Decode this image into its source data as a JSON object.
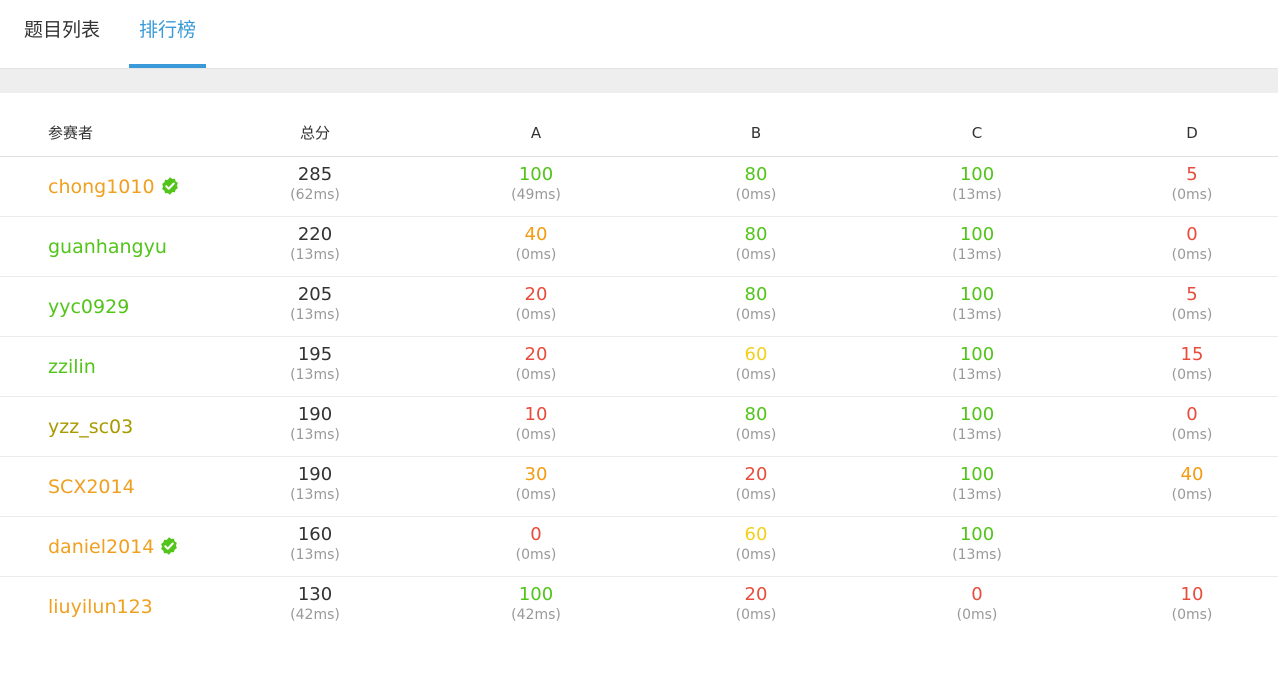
{
  "tabs": [
    {
      "label": "题目列表",
      "active": false
    },
    {
      "label": "排行榜",
      "active": true
    }
  ],
  "table": {
    "headers": [
      "参赛者",
      "总分",
      "A",
      "B",
      "C",
      "D"
    ],
    "rows": [
      {
        "name": "chong1010",
        "name_color": "#f0a020",
        "verified": true,
        "total": {
          "score": "285",
          "time": "(62ms)"
        },
        "problems": [
          {
            "score": "100",
            "time": "(49ms)",
            "color": "#52c41a"
          },
          {
            "score": "80",
            "time": "(0ms)",
            "color": "#52c41a"
          },
          {
            "score": "100",
            "time": "(13ms)",
            "color": "#52c41a"
          },
          {
            "score": "5",
            "time": "(0ms)",
            "color": "#e74c3c"
          }
        ]
      },
      {
        "name": "guanhangyu",
        "name_color": "#52c41a",
        "verified": false,
        "total": {
          "score": "220",
          "time": "(13ms)"
        },
        "problems": [
          {
            "score": "40",
            "time": "(0ms)",
            "color": "#f39c12"
          },
          {
            "score": "80",
            "time": "(0ms)",
            "color": "#52c41a"
          },
          {
            "score": "100",
            "time": "(13ms)",
            "color": "#52c41a"
          },
          {
            "score": "0",
            "time": "(0ms)",
            "color": "#e74c3c"
          }
        ]
      },
      {
        "name": "yyc0929",
        "name_color": "#52c41a",
        "verified": false,
        "total": {
          "score": "205",
          "time": "(13ms)"
        },
        "problems": [
          {
            "score": "20",
            "time": "(0ms)",
            "color": "#e74c3c"
          },
          {
            "score": "80",
            "time": "(0ms)",
            "color": "#52c41a"
          },
          {
            "score": "100",
            "time": "(13ms)",
            "color": "#52c41a"
          },
          {
            "score": "5",
            "time": "(0ms)",
            "color": "#e74c3c"
          }
        ]
      },
      {
        "name": "zzilin",
        "name_color": "#52c41a",
        "verified": false,
        "total": {
          "score": "195",
          "time": "(13ms)"
        },
        "problems": [
          {
            "score": "20",
            "time": "(0ms)",
            "color": "#e74c3c"
          },
          {
            "score": "60",
            "time": "(0ms)",
            "color": "#f1d11c"
          },
          {
            "score": "100",
            "time": "(13ms)",
            "color": "#52c41a"
          },
          {
            "score": "15",
            "time": "(0ms)",
            "color": "#e74c3c"
          }
        ]
      },
      {
        "name": "yzz_sc03",
        "name_color": "#a89a00",
        "verified": false,
        "total": {
          "score": "190",
          "time": "(13ms)"
        },
        "problems": [
          {
            "score": "10",
            "time": "(0ms)",
            "color": "#e74c3c"
          },
          {
            "score": "80",
            "time": "(0ms)",
            "color": "#52c41a"
          },
          {
            "score": "100",
            "time": "(13ms)",
            "color": "#52c41a"
          },
          {
            "score": "0",
            "time": "(0ms)",
            "color": "#e74c3c"
          }
        ]
      },
      {
        "name": "SCX2014",
        "name_color": "#f0a020",
        "verified": false,
        "total": {
          "score": "190",
          "time": "(13ms)"
        },
        "problems": [
          {
            "score": "30",
            "time": "(0ms)",
            "color": "#f39c12"
          },
          {
            "score": "20",
            "time": "(0ms)",
            "color": "#e74c3c"
          },
          {
            "score": "100",
            "time": "(13ms)",
            "color": "#52c41a"
          },
          {
            "score": "40",
            "time": "(0ms)",
            "color": "#f39c12"
          }
        ]
      },
      {
        "name": "daniel2014",
        "name_color": "#f0a020",
        "verified": true,
        "total": {
          "score": "160",
          "time": "(13ms)"
        },
        "problems": [
          {
            "score": "0",
            "time": "(0ms)",
            "color": "#e74c3c"
          },
          {
            "score": "60",
            "time": "(0ms)",
            "color": "#f1d11c"
          },
          {
            "score": "100",
            "time": "(13ms)",
            "color": "#52c41a"
          },
          null
        ]
      },
      {
        "name": "liuyilun123",
        "name_color": "#f0a020",
        "verified": false,
        "total": {
          "score": "130",
          "time": "(42ms)"
        },
        "problems": [
          {
            "score": "100",
            "time": "(42ms)",
            "color": "#52c41a"
          },
          {
            "score": "20",
            "time": "(0ms)",
            "color": "#e74c3c"
          },
          {
            "score": "0",
            "time": "(0ms)",
            "color": "#e74c3c"
          },
          {
            "score": "10",
            "time": "(0ms)",
            "color": "#e74c3c"
          }
        ]
      }
    ]
  }
}
